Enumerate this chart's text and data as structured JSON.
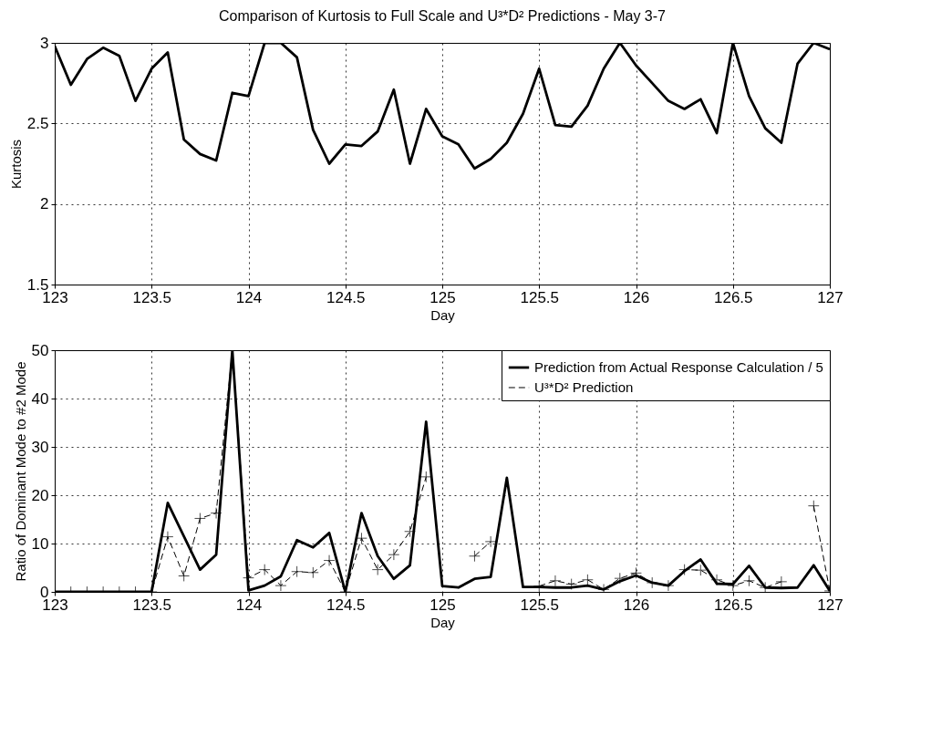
{
  "chart_data": [
    {
      "type": "line",
      "title": "Comparison of Kurtosis to Full Scale and U³*D² Predictions - May 3-7",
      "xlabel": "Day",
      "ylabel": "Kurtosis",
      "x": [
        123,
        123.0833,
        123.1667,
        123.25,
        123.3333,
        123.4167,
        123.5,
        123.5833,
        123.6667,
        123.75,
        123.8333,
        123.9167,
        124,
        124.0833,
        124.1667,
        124.25,
        124.3333,
        124.4167,
        124.5,
        124.5833,
        124.6667,
        124.75,
        124.8333,
        124.9167,
        125,
        125.0833,
        125.1667,
        125.25,
        125.3333,
        125.4167,
        125.5,
        125.5833,
        125.6667,
        125.75,
        125.8333,
        125.9167,
        126,
        126.0833,
        126.1667,
        126.25,
        126.3333,
        126.4167,
        126.5,
        126.5833,
        126.6667,
        126.75,
        126.8333,
        126.9167,
        127
      ],
      "series": [
        {
          "color": "#000000",
          "line_style": "solid",
          "values": [
            2.98,
            2.74,
            2.9,
            2.97,
            2.92,
            2.64,
            2.84,
            2.94,
            2.4,
            2.31,
            2.27,
            2.69,
            2.67,
            3,
            3,
            2.91,
            2.46,
            2.25,
            2.37,
            2.36,
            2.45,
            2.71,
            2.25,
            2.59,
            2.42,
            2.37,
            2.22,
            2.28,
            2.38,
            2.56,
            2.84,
            2.49,
            2.48,
            2.61,
            2.84,
            3,
            2.86,
            2.75,
            2.64,
            2.59,
            2.65,
            2.44,
            3,
            2.67,
            2.47,
            2.38,
            2.87,
            3,
            2.96
          ]
        }
      ],
      "xlim": [
        123,
        127
      ],
      "xticks": [
        123,
        123.5,
        124,
        124.5,
        125,
        125.5,
        126,
        126.5,
        127
      ],
      "ylim": [
        1.5,
        3
      ],
      "yticks": [
        1.5,
        2,
        2.5,
        3
      ],
      "grid": true
    },
    {
      "type": "line",
      "xlabel": "Day",
      "ylabel": "Ratio of Dominant Mode to #2 Mode",
      "x": [
        123,
        123.0833,
        123.1667,
        123.25,
        123.3333,
        123.4167,
        123.5,
        123.5833,
        123.6667,
        123.75,
        123.8333,
        123.9167,
        124,
        124.0833,
        124.1667,
        124.25,
        124.3333,
        124.4167,
        124.5,
        124.5833,
        124.6667,
        124.75,
        124.8333,
        124.9167,
        125,
        125.0833,
        125.1667,
        125.25,
        125.3333,
        125.4167,
        125.5,
        125.5833,
        125.6667,
        125.75,
        125.8333,
        125.9167,
        126,
        126.0833,
        126.1667,
        126.25,
        126.3333,
        126.4167,
        126.5,
        126.5833,
        126.6667,
        126.75,
        126.8333,
        126.9167,
        127
      ],
      "series": [
        {
          "name": "Prediction from Actual Response Calculation / 5",
          "color": "#000000",
          "line_style": "solid",
          "marker": "none",
          "values": [
            0,
            0,
            0,
            0,
            0,
            0,
            0,
            18.4,
            11.5,
            4.6,
            7.7,
            50,
            0.3,
            1.3,
            3.2,
            10.7,
            9.2,
            12.2,
            0,
            16.3,
            7.4,
            2.7,
            5.5,
            35.2,
            1.2,
            0.9,
            2.7,
            3.1,
            23.6,
            1,
            1,
            0.9,
            0.9,
            1.3,
            0.5,
            2.2,
            3.4,
            1.9,
            1.3,
            4.3,
            6.7,
            1.7,
            1.6,
            5.4,
            0.9,
            0.8,
            0.9,
            5.5,
            0.2
          ]
        },
        {
          "name": "U³*D² Prediction",
          "color": "#000000",
          "line_style": "dashed",
          "marker": "cross",
          "values": [
            0,
            0,
            0,
            0,
            0,
            0,
            0,
            11.4,
            3.3,
            15.2,
            16.3,
            50,
            2.9,
            4.6,
            1.3,
            4.2,
            4,
            6.5,
            0,
            11.1,
            4.6,
            7.7,
            12.5,
            23.8,
            null,
            null,
            7.4,
            10.4,
            null,
            null,
            1.2,
            2.3,
            1.6,
            2.5,
            0.5,
            2.8,
            3.9,
            1.9,
            1.3,
            4.6,
            4.5,
            2.5,
            1.3,
            2.3,
            0.9,
            2.1,
            null,
            17.8,
            0.2
          ]
        }
      ],
      "xlim": [
        123,
        127
      ],
      "xticks": [
        123,
        123.5,
        124,
        124.5,
        125,
        125.5,
        126,
        126.5,
        127
      ],
      "ylim": [
        0,
        50
      ],
      "yticks": [
        0,
        10,
        20,
        30,
        40,
        50
      ],
      "grid": true,
      "legend": "top right"
    }
  ]
}
